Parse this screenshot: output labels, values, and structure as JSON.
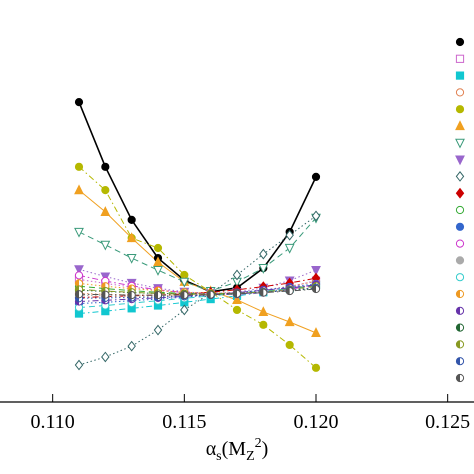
{
  "chart_data": {
    "type": "line",
    "xlabel": [
      "α",
      "s",
      "(M",
      "Z",
      "2",
      ")"
    ],
    "x": [
      0.111,
      0.112,
      0.113,
      0.114,
      0.115,
      0.116,
      0.117,
      0.118,
      0.119,
      0.12
    ],
    "xlim": [
      0.108,
      0.126
    ],
    "ylim": [
      0,
      100
    ],
    "xticks": [
      {
        "value": 0.11,
        "label": "0.110"
      },
      0.115,
      {
        "value": 0.12,
        "label": "0.120"
      },
      0.125
    ],
    "legend": "right",
    "series": [
      {
        "marker": "circle",
        "filled": true,
        "color": "#000000",
        "dash": "solid",
        "values": [
          74.6,
          58.5,
          45.3,
          35.8,
          30.3,
          27.4,
          28.4,
          33.3,
          42.3,
          56.0
        ]
      },
      {
        "marker": "square",
        "filled": false,
        "color": "#cc66cc",
        "dash": "dotted",
        "values": [
          30.5,
          29.5,
          28.6,
          27.8,
          27.2,
          26.9,
          27.0,
          27.6,
          28.6,
          30.2
        ]
      },
      {
        "marker": "square",
        "filled": true,
        "color": "#11c7d0",
        "dash": "dashdot",
        "values": [
          22.0,
          22.6,
          23.3,
          24.0,
          24.8,
          25.6,
          26.4,
          27.3,
          28.2,
          29.2
        ]
      },
      {
        "marker": "circle",
        "filled": false,
        "color": "#e08050",
        "dash": "dotted",
        "values": [
          27.0,
          26.8,
          26.6,
          26.5,
          26.5,
          26.7,
          27.1,
          27.8,
          28.8,
          30.0
        ]
      },
      {
        "marker": "circle",
        "filled": true,
        "color": "#b5b800",
        "dash": "dashdot",
        "values": [
          58.5,
          52.7,
          40.8,
          38.3,
          31.6,
          27.4,
          22.9,
          19.2,
          14.2,
          8.5
        ]
      },
      {
        "marker": "triangle",
        "filled": true,
        "color": "#f0a020",
        "dash": "solid",
        "values": [
          52.7,
          47.3,
          40.8,
          34.8,
          29.9,
          27.6,
          25.4,
          22.4,
          19.9,
          17.2
        ]
      },
      {
        "marker": "itriangle",
        "filled": false,
        "color": "#3a9a7a",
        "dash": "dashed",
        "values": [
          42.3,
          39.1,
          35.8,
          32.8,
          29.9,
          27.6,
          29.9,
          33.3,
          38.3,
          45.8
        ]
      },
      {
        "marker": "itriangle",
        "filled": true,
        "color": "#9966cc",
        "dash": "dotted",
        "values": [
          33.0,
          31.2,
          29.6,
          28.3,
          27.4,
          27.0,
          27.3,
          28.4,
          30.2,
          32.8
        ]
      },
      {
        "marker": "diamond",
        "filled": false,
        "color": "#336666",
        "dash": "dotted",
        "values": [
          9.2,
          11.2,
          13.9,
          17.9,
          22.9,
          27.1,
          31.6,
          36.8,
          41.5,
          46.3
        ]
      },
      {
        "marker": "diamond",
        "filled": true,
        "color": "#cc0000",
        "dash": "dashdot",
        "values": [
          26.0,
          26.2,
          26.4,
          26.6,
          26.9,
          27.3,
          27.9,
          28.7,
          29.6,
          30.8
        ]
      },
      {
        "marker": "circle",
        "filled": false,
        "color": "#33aa33",
        "dash": "dashed",
        "values": [
          28.8,
          28.2,
          27.7,
          27.3,
          27.0,
          26.9,
          27.1,
          27.5,
          28.2,
          29.1
        ]
      },
      {
        "marker": "circle",
        "filled": true,
        "color": "#3366cc",
        "dash": "dotted",
        "values": [
          24.5,
          24.8,
          25.2,
          25.6,
          26.1,
          26.6,
          27.2,
          27.9,
          28.6,
          29.4
        ]
      },
      {
        "marker": "circle",
        "filled": false,
        "color": "#cc33cc",
        "dash": "dashdot",
        "values": [
          31.5,
          30.1,
          28.9,
          27.9,
          27.2,
          26.8,
          26.8,
          27.2,
          28.0,
          29.2
        ]
      },
      {
        "marker": "circle",
        "filled": true,
        "color": "#aaaaaa",
        "dash": "dotted",
        "values": [
          26.5,
          26.4,
          26.3,
          26.3,
          26.4,
          26.6,
          26.9,
          27.3,
          27.8,
          28.4
        ]
      },
      {
        "marker": "circle",
        "filled": false,
        "color": "#33cccc",
        "dash": "dashed",
        "values": [
          23.5,
          24.0,
          24.6,
          25.2,
          25.8,
          26.4,
          27.0,
          27.6,
          28.2,
          28.8
        ]
      },
      {
        "marker": "half",
        "filled": true,
        "color": "#ee9922",
        "dash": "dotted",
        "values": [
          29.5,
          28.8,
          28.2,
          27.7,
          27.3,
          27.1,
          27.1,
          27.3,
          27.8,
          28.5
        ]
      },
      {
        "marker": "half",
        "filled": true,
        "color": "#6633aa",
        "dash": "dashdot",
        "values": [
          25.0,
          25.3,
          25.6,
          25.9,
          26.3,
          26.7,
          27.2,
          27.8,
          28.4,
          29.1
        ]
      },
      {
        "marker": "half",
        "filled": true,
        "color": "#226633",
        "dash": "dotted",
        "values": [
          27.8,
          27.5,
          27.2,
          27.0,
          26.9,
          26.9,
          27.0,
          27.3,
          27.7,
          28.2
        ]
      },
      {
        "marker": "half",
        "filled": true,
        "color": "#889922",
        "dash": "dashed",
        "values": [
          28.0,
          27.6,
          27.3,
          27.0,
          26.8,
          26.8,
          27.0,
          27.4,
          28.0,
          28.8
        ]
      },
      {
        "marker": "half",
        "filled": true,
        "color": "#3355aa",
        "dash": "dotted",
        "values": [
          25.8,
          25.9,
          26.0,
          26.1,
          26.3,
          26.6,
          26.9,
          27.3,
          27.8,
          28.4
        ]
      },
      {
        "marker": "half",
        "filled": true,
        "color": "#555555",
        "dash": "dashdot",
        "values": [
          26.8,
          26.7,
          26.6,
          26.6,
          26.6,
          26.7,
          26.9,
          27.2,
          27.6,
          28.1
        ]
      }
    ]
  }
}
